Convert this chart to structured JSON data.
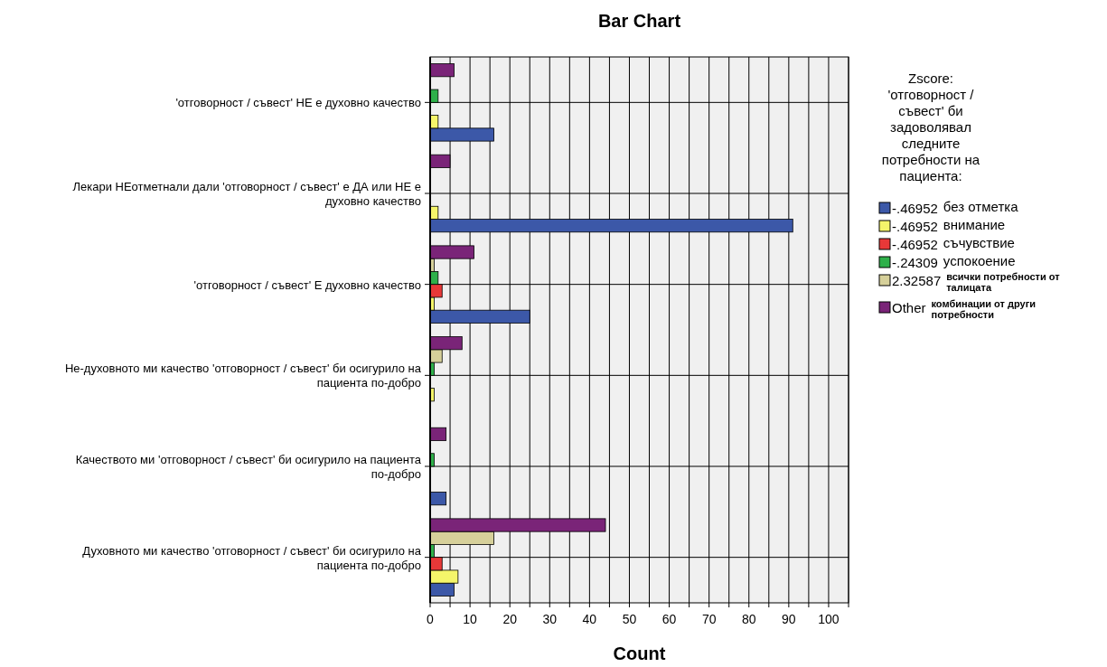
{
  "chart_data": {
    "type": "bar",
    "orientation": "horizontal",
    "title": "Bar Chart",
    "xlabel": "Count",
    "legend_title": "Zscore: 'отговорност / съвест' би задоволявал следните потребности на пациента:",
    "legend": "right",
    "grid": true,
    "categories": [
      "'отговорност / съвест' НЕ е духовно качество",
      "Лекари НЕотметнали дали 'отговорност / съвест' е ДА или НЕ е духовно качество",
      "'отговорност / съвест' Е духовно качество",
      "Не-духовното ми качество 'отговорност / съвест' би осигурило на пациента по-добро",
      "Качеството ми 'отговорност / съвест' би осигурило на пациента по-добро",
      "Духовното ми качество 'отговорност / съвест' би осигурило на пациента по-добро"
    ],
    "xlim": [
      0,
      105
    ],
    "xticks": [
      0,
      {
        "value": 5,
        "label": null
      },
      10,
      {
        "value": 15,
        "label": null
      },
      20,
      {
        "value": 25,
        "label": null
      },
      30,
      {
        "value": 35,
        "label": null
      },
      40,
      {
        "value": 45,
        "label": null
      },
      50,
      {
        "value": 55,
        "label": null
      },
      60,
      {
        "value": 65,
        "label": null
      },
      70,
      {
        "value": 75,
        "label": null
      },
      80,
      {
        "value": 85,
        "label": null
      },
      90,
      {
        "value": 95,
        "label": null
      },
      100,
      {
        "value": 105,
        "label": null
      }
    ],
    "series": [
      {
        "name": "-.46952 без отметка",
        "color": "#3c58a8",
        "values": [
          16,
          91,
          25,
          0,
          4,
          6
        ]
      },
      {
        "name": "-.46952 внимание",
        "color": "#f5f56a",
        "values": [
          2,
          2,
          1,
          1,
          0,
          7
        ]
      },
      {
        "name": "-.46952 съчувствие",
        "color": "#e83838",
        "values": [
          0,
          0,
          3,
          0,
          0,
          3
        ]
      },
      {
        "name": "-.24309 успокоение",
        "color": "#2eb04a",
        "values": [
          2,
          0,
          2,
          1,
          1,
          1
        ]
      },
      {
        "name": "2.32587 всички потребности от талицата",
        "color": "#d6d09a",
        "values": [
          0,
          0,
          1,
          3,
          0,
          16
        ]
      },
      {
        "name": "Other комбинации от други потребности",
        "color": "#7a2478",
        "values": [
          6,
          5,
          11,
          8,
          4,
          44
        ]
      }
    ]
  }
}
